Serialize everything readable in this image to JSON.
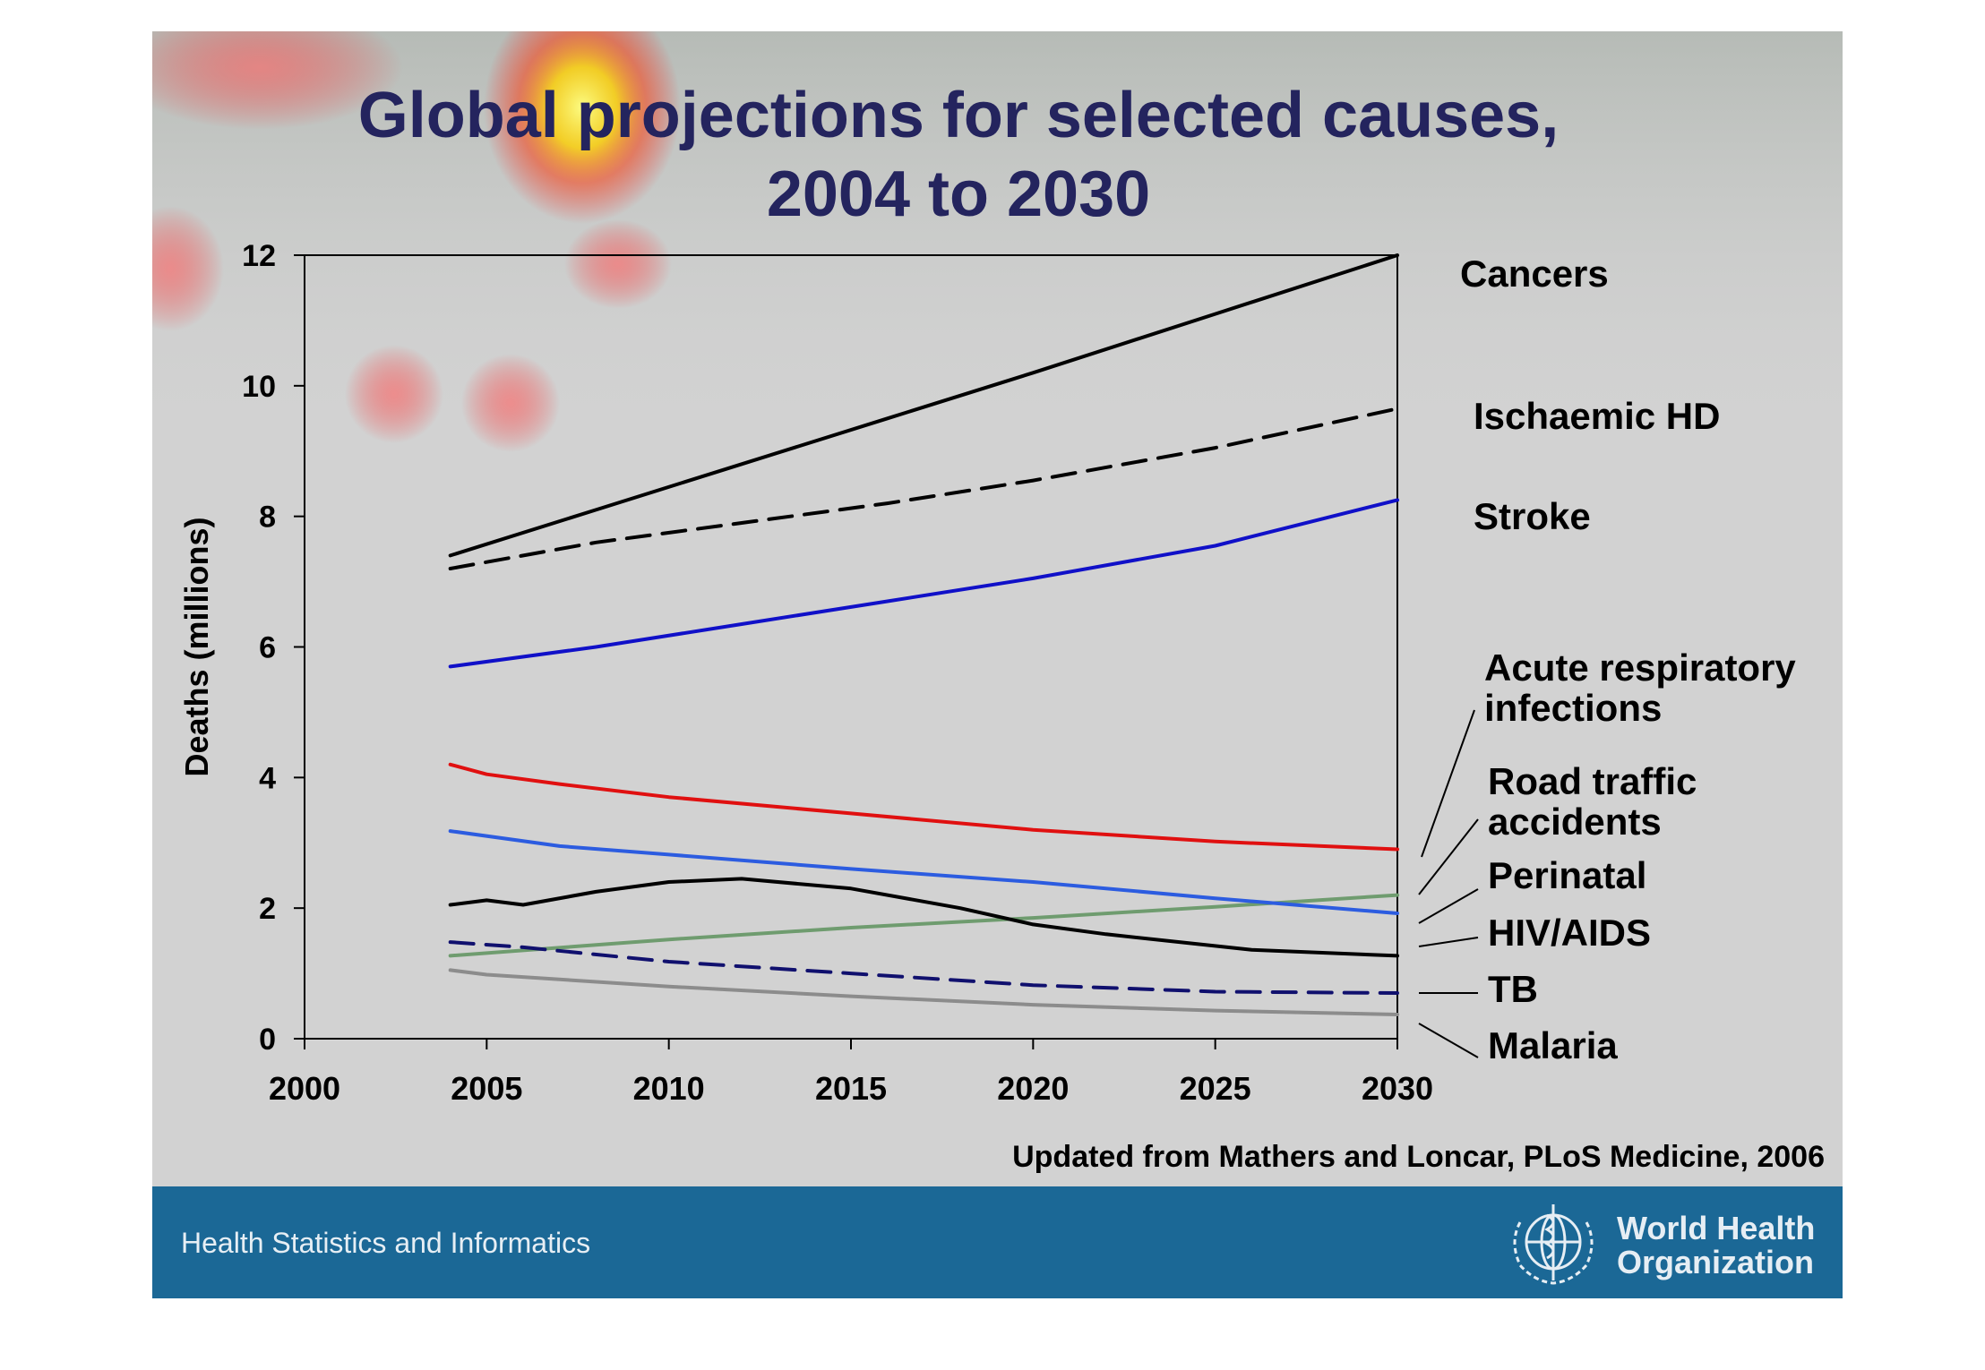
{
  "slide_title": [
    "Global projections for selected causes,",
    "2004 to 2030"
  ],
  "source_note": "Updated from Mathers and Loncar, PLoS Medicine, 2006",
  "footer": {
    "text": "Health Statistics and Informatics",
    "org_name": [
      "World Health",
      "Organization"
    ],
    "color": "#1b6896"
  },
  "chart_data": {
    "type": "line",
    "title": "",
    "xlabel": "",
    "ylabel": "Deaths (millions)",
    "xlim": [
      2000,
      2030
    ],
    "ylim": [
      0,
      12
    ],
    "x_ticks": [
      2000,
      2005,
      2010,
      2015,
      2020,
      2025,
      2030
    ],
    "y_ticks": [
      0,
      2,
      4,
      6,
      8,
      10,
      12
    ],
    "grid": false,
    "legend": "labels at right end of lines",
    "series": [
      {
        "name": "Cancers",
        "color": "#000000",
        "dash": "solid",
        "x": [
          2004,
          2008,
          2012,
          2016,
          2020,
          2025,
          2030
        ],
        "y": [
          7.4,
          8.1,
          8.8,
          9.5,
          10.2,
          11.1,
          12.0
        ]
      },
      {
        "name": "Ischaemic HD",
        "color": "#000000",
        "dash": "dashed",
        "x": [
          2004,
          2008,
          2012,
          2016,
          2020,
          2025,
          2030
        ],
        "y": [
          7.2,
          7.6,
          7.9,
          8.2,
          8.55,
          9.05,
          9.65
        ]
      },
      {
        "name": "Stroke",
        "color": "#1010c8",
        "dash": "solid",
        "x": [
          2004,
          2008,
          2012,
          2016,
          2020,
          2025,
          2030
        ],
        "y": [
          5.7,
          6.0,
          6.35,
          6.7,
          7.05,
          7.55,
          8.25
        ]
      },
      {
        "name": "Acute respiratory infections",
        "color": "#e01010",
        "dash": "solid",
        "x": [
          2004,
          2005,
          2007,
          2010,
          2015,
          2020,
          2025,
          2030
        ],
        "y": [
          4.2,
          4.05,
          3.9,
          3.7,
          3.45,
          3.2,
          3.02,
          2.9
        ]
      },
      {
        "name": "Road traffic accidents",
        "color": "#6f9c6f",
        "dash": "solid",
        "x": [
          2004,
          2010,
          2015,
          2020,
          2025,
          2030
        ],
        "y": [
          1.27,
          1.52,
          1.7,
          1.85,
          2.02,
          2.2
        ]
      },
      {
        "name": "Perinatal",
        "color": "#2c5ce0",
        "dash": "solid",
        "x": [
          2004,
          2007,
          2010,
          2015,
          2020,
          2025,
          2030
        ],
        "y": [
          3.18,
          2.95,
          2.82,
          2.6,
          2.4,
          2.15,
          1.92
        ]
      },
      {
        "name": "HIV/AIDS",
        "color": "#000000",
        "dash": "solid",
        "x": [
          2004,
          2005,
          2006,
          2008,
          2010,
          2012,
          2015,
          2018,
          2020,
          2022,
          2026,
          2030
        ],
        "y": [
          2.05,
          2.12,
          2.05,
          2.25,
          2.4,
          2.45,
          2.3,
          2.0,
          1.75,
          1.6,
          1.36,
          1.27
        ]
      },
      {
        "name": "TB",
        "color": "#10106e",
        "dash": "dashed",
        "x": [
          2004,
          2006,
          2010,
          2015,
          2020,
          2025,
          2030
        ],
        "y": [
          1.48,
          1.4,
          1.18,
          1.0,
          0.82,
          0.72,
          0.7
        ]
      },
      {
        "name": "Malaria",
        "color": "#8c8c8c",
        "dash": "solid",
        "x": [
          2004,
          2005,
          2010,
          2015,
          2020,
          2025,
          2030
        ],
        "y": [
          1.05,
          0.98,
          0.8,
          0.65,
          0.52,
          0.43,
          0.37
        ]
      }
    ],
    "line_labels": [
      {
        "series": "Cancers",
        "text": [
          "Cancers"
        ],
        "leader": false
      },
      {
        "series": "Ischaemic HD",
        "text": [
          "Ischaemic HD"
        ],
        "leader": false
      },
      {
        "series": "Stroke",
        "text": [
          "Stroke"
        ],
        "leader": false
      },
      {
        "series": "Acute respiratory infections",
        "text": [
          "Acute respiratory",
          "infections"
        ],
        "leader": true
      },
      {
        "series": "Road traffic accidents",
        "text": [
          "Road traffic",
          "accidents"
        ],
        "leader": true
      },
      {
        "series": "Perinatal",
        "text": [
          "Perinatal"
        ],
        "leader": true
      },
      {
        "series": "HIV/AIDS",
        "text": [
          "HIV/AIDS"
        ],
        "leader": true
      },
      {
        "series": "TB",
        "text": [
          "TB"
        ],
        "leader": true
      },
      {
        "series": "Malaria",
        "text": [
          "Malaria"
        ],
        "leader": true
      }
    ]
  }
}
